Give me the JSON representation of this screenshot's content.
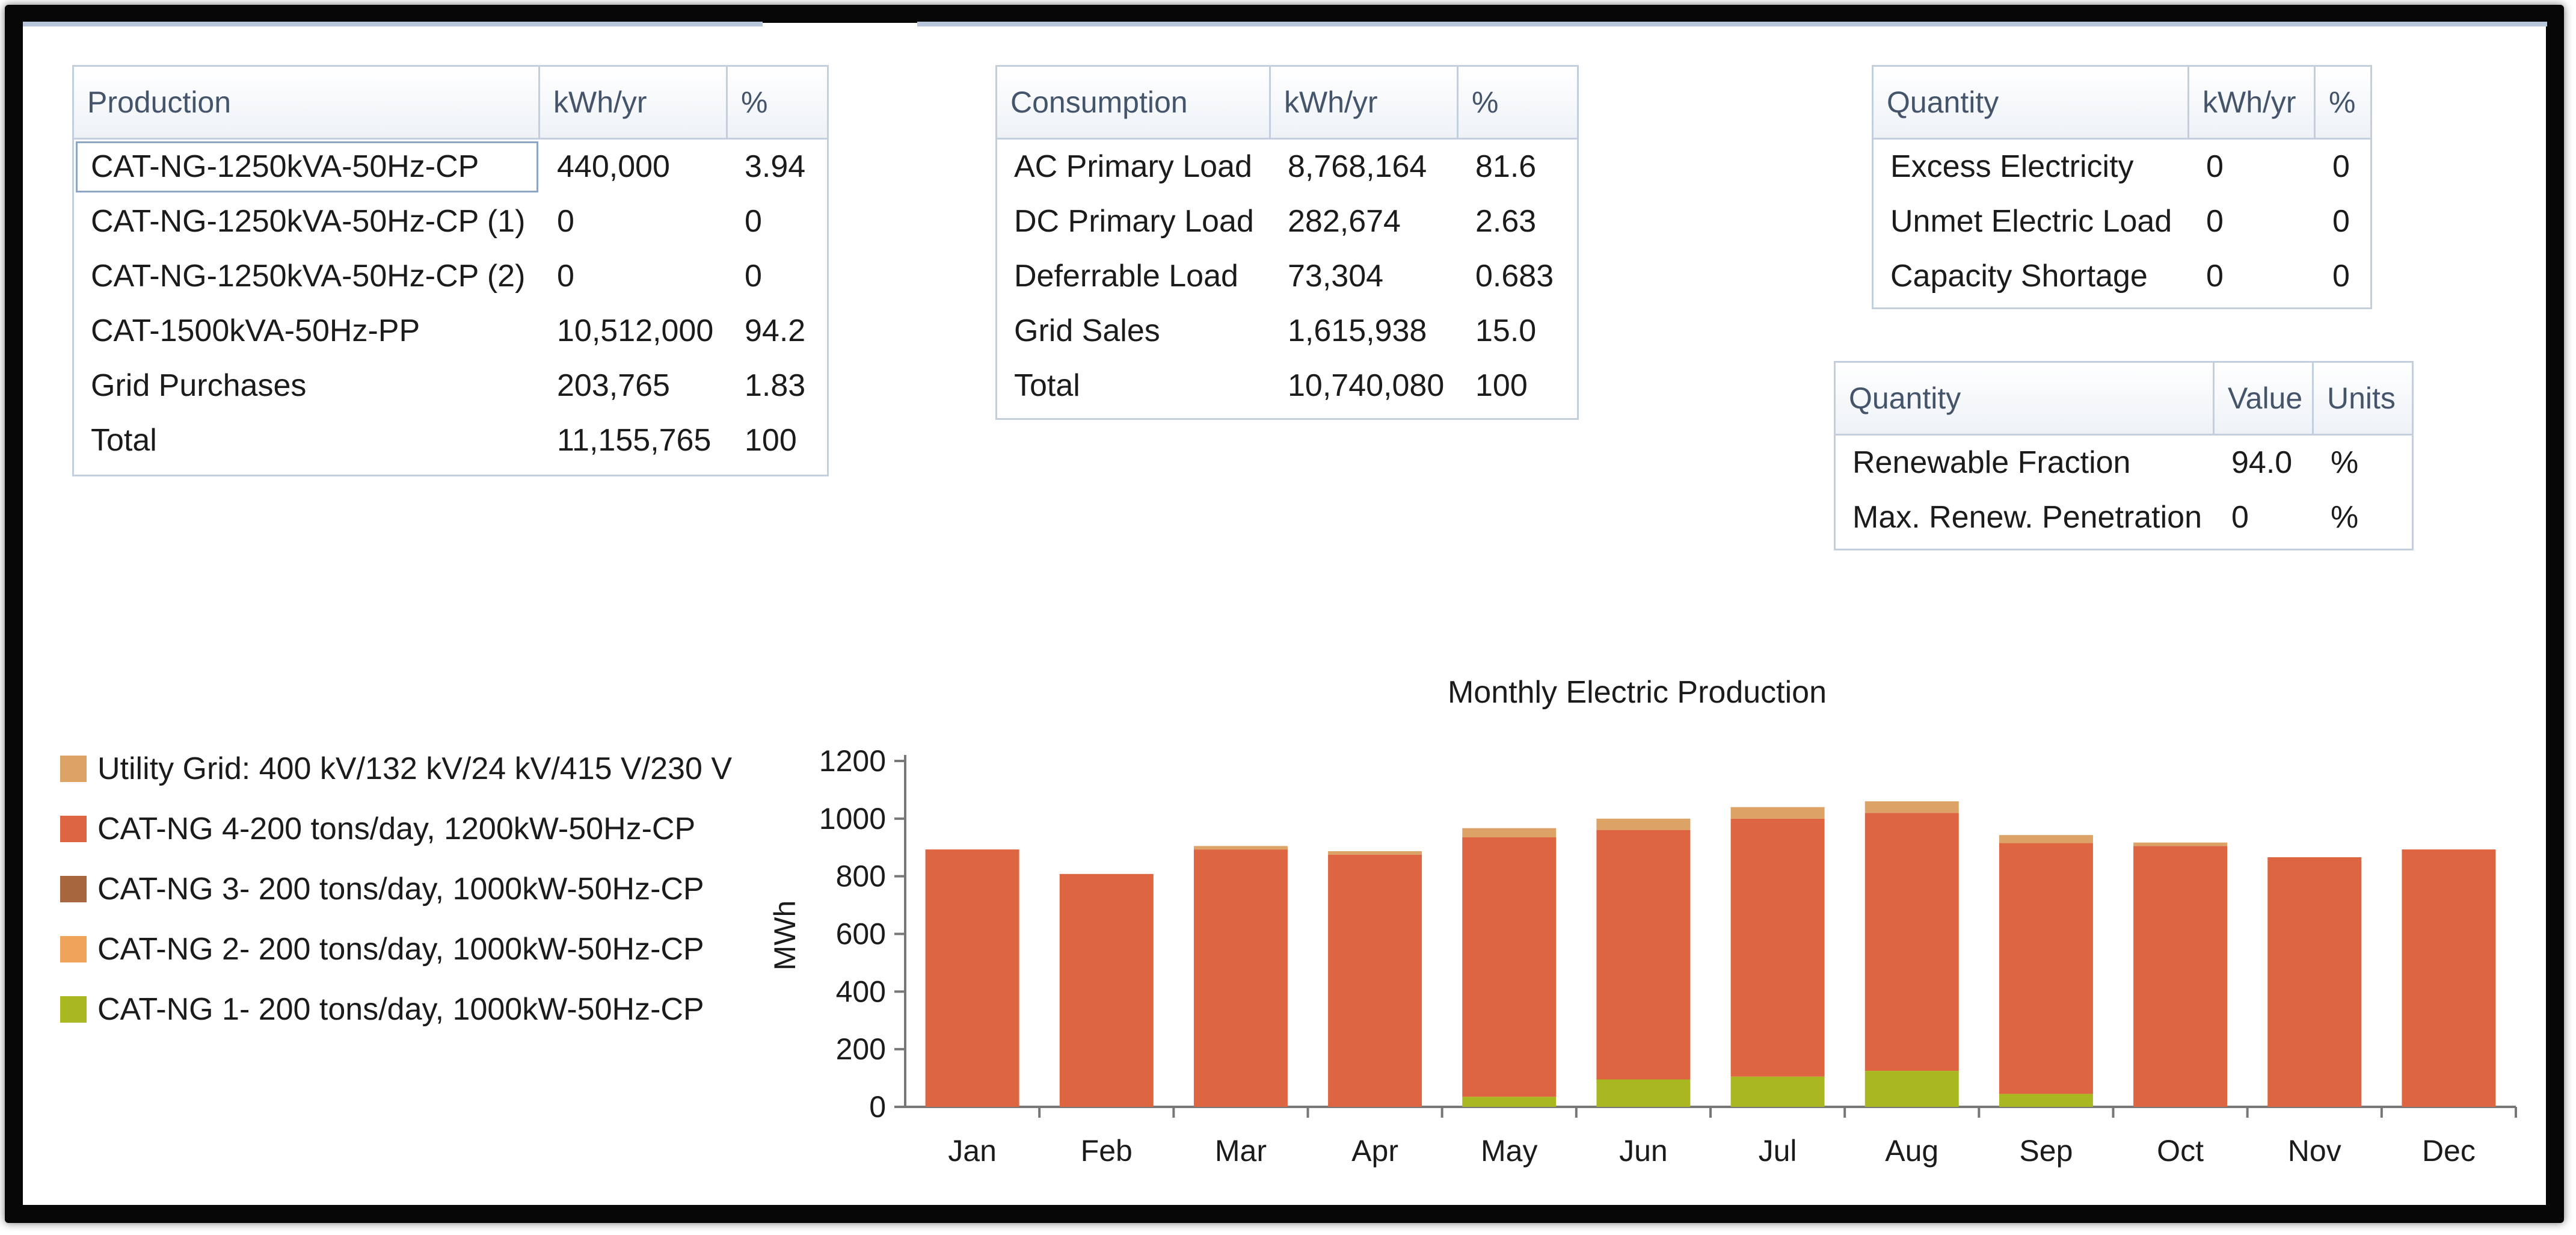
{
  "production_table": {
    "headers": [
      "Production",
      "kWh/yr",
      "%"
    ],
    "rows": [
      [
        "CAT-NG-1250kVA-50Hz-CP",
        "440,000",
        "3.94"
      ],
      [
        "CAT-NG-1250kVA-50Hz-CP (1)",
        "0",
        "0"
      ],
      [
        "CAT-NG-1250kVA-50Hz-CP (2)",
        "0",
        "0"
      ],
      [
        "CAT-1500kVA-50Hz-PP",
        "10,512,000",
        "94.2"
      ],
      [
        "Grid Purchases",
        "203,765",
        "1.83"
      ],
      [
        "Total",
        "11,155,765",
        "100"
      ]
    ]
  },
  "consumption_table": {
    "headers": [
      "Consumption",
      "kWh/yr",
      "%"
    ],
    "rows": [
      [
        "AC Primary Load",
        "8,768,164",
        "81.6"
      ],
      [
        "DC Primary Load",
        "282,674",
        "2.63"
      ],
      [
        "Deferrable Load",
        "73,304",
        "0.683"
      ],
      [
        "Grid Sales",
        "1,615,938",
        "15.0"
      ],
      [
        "Total",
        "10,740,080",
        "100"
      ]
    ]
  },
  "quantity_table": {
    "headers": [
      "Quantity",
      "kWh/yr",
      "%"
    ],
    "rows": [
      [
        "Excess Electricity",
        "0",
        "0"
      ],
      [
        "Unmet Electric Load",
        "0",
        "0"
      ],
      [
        "Capacity Shortage",
        "0",
        "0"
      ]
    ]
  },
  "renewable_table": {
    "headers": [
      "Quantity",
      "Value",
      "Units"
    ],
    "rows": [
      [
        "Renewable Fraction",
        "94.0",
        "%"
      ],
      [
        "Max. Renew. Penetration",
        "0",
        "%"
      ]
    ]
  },
  "legend": [
    {
      "label": "Utility Grid: 400 kV/132 kV/24 kV/415 V/230 V",
      "color": "#dca266"
    },
    {
      "label": "CAT-NG 4-200 tons/day, 1200kW-50Hz-CP",
      "color": "#dd6541"
    },
    {
      "label": "CAT-NG 3- 200 tons/day, 1000kW-50Hz-CP",
      "color": "#a8663e"
    },
    {
      "label": "CAT-NG 2- 200 tons/day, 1000kW-50Hz-CP",
      "color": "#f0a35a"
    },
    {
      "label": "CAT-NG 1- 200 tons/day, 1000kW-50Hz-CP",
      "color": "#a9b820"
    }
  ],
  "chart_data": {
    "type": "bar",
    "stacked": true,
    "title": "Monthly Electric Production",
    "xlabel": "",
    "ylabel": "MWh",
    "ylim": [
      0,
      1200
    ],
    "yticks": [
      0,
      200,
      400,
      600,
      800,
      1000,
      1200
    ],
    "categories": [
      "Jan",
      "Feb",
      "Mar",
      "Apr",
      "May",
      "Jun",
      "Jul",
      "Aug",
      "Sep",
      "Oct",
      "Nov",
      "Dec"
    ],
    "series": [
      {
        "name": "CAT-NG 1- 200 tons/day, 1000kW-50Hz-CP",
        "color": "#a9b820",
        "values": [
          0,
          0,
          0,
          0,
          35,
          95,
          105,
          125,
          45,
          0,
          0,
          0
        ]
      },
      {
        "name": "CAT-NG 4-200 tons/day, 1200kW-50Hz-CP",
        "color": "#dd6541",
        "values": [
          893,
          808,
          893,
          875,
          900,
          865,
          895,
          895,
          870,
          905,
          866,
          893
        ]
      },
      {
        "name": "Utility Grid: 400 kV/132 kV/24 kV/415 V/230 V",
        "color": "#dca266",
        "values": [
          0,
          0,
          12,
          12,
          32,
          40,
          40,
          40,
          28,
          12,
          0,
          0
        ]
      }
    ]
  }
}
